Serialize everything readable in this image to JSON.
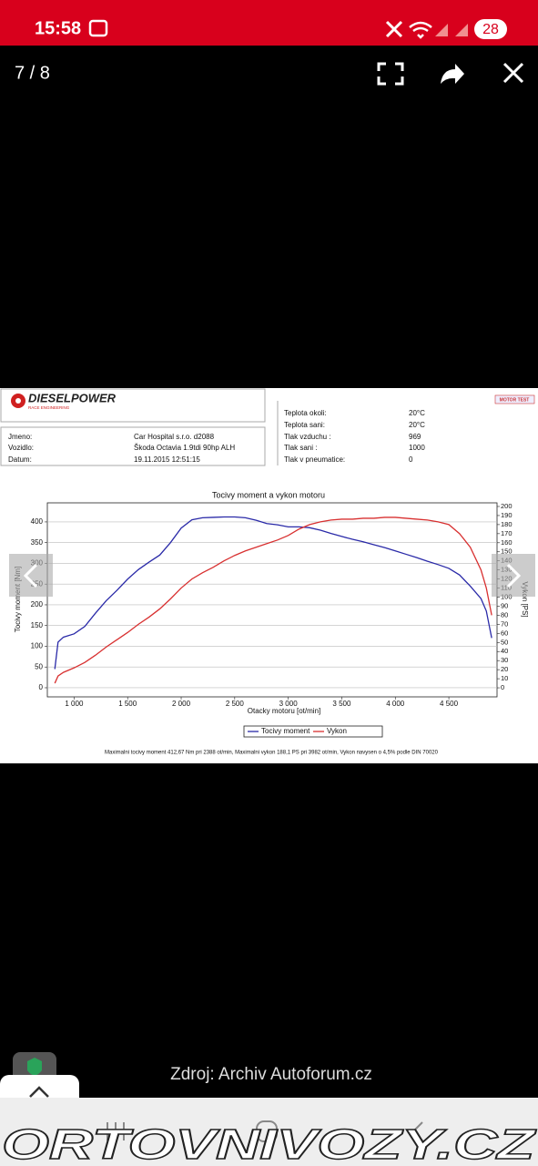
{
  "status_bar": {
    "time": "15:58",
    "battery": "28"
  },
  "viewer": {
    "counter": "7 / 8"
  },
  "sheet": {
    "logo": "DIESELPOWER",
    "logo_subtitle": "RACE ENGINEERING",
    "badge": "MOTOR TEST",
    "info": [
      {
        "label": "Jmeno:",
        "value": "Car Hospital s.r.o. d2088"
      },
      {
        "label": "Vozidlo:",
        "value": "Škoda Octavia 1.9tdi 90hp ALH"
      },
      {
        "label": "Datum:",
        "value": "19.11.2015 12:51:15"
      }
    ],
    "conditions": [
      {
        "label": "Teplota okoli:",
        "value": "20°C"
      },
      {
        "label": "Teplota sani:",
        "value": "20°C"
      },
      {
        "label": "Tlak vzduchu :",
        "value": 969
      },
      {
        "label": "Tlak sani :",
        "value": 1000
      },
      {
        "label": "Tlak v pneumatice:",
        "value": 0
      }
    ],
    "footnote": "Maximalni tocivy moment 412,67 Nm pri 2388 ot/min,  Maximalni vykon 188,1 PS pri 3982 ot/min,  Vykon navysen o 4,5% podle DIN 70020"
  },
  "chart_data": {
    "type": "line",
    "title": "Tocivy moment a vykon motoru",
    "x_label": "Otacky motoru [ot/min]",
    "y_label": "Tocivy moment [Nm]",
    "y2_label": "Vykon [PS]",
    "x": [
      820,
      850,
      900,
      1000,
      1100,
      1200,
      1300,
      1400,
      1500,
      1600,
      1700,
      1800,
      1900,
      2000,
      2100,
      2200,
      2300,
      2400,
      2500,
      2600,
      2700,
      2800,
      2900,
      3000,
      3100,
      3200,
      3300,
      3400,
      3500,
      3600,
      3700,
      3800,
      3900,
      4000,
      4100,
      4200,
      4300,
      4400,
      4500,
      4600,
      4700,
      4800,
      4850,
      4900
    ],
    "series": [
      {
        "name": "Tocivy moment",
        "color": "#2a2aa8",
        "axis": "y",
        "values": [
          45,
          110,
          122,
          130,
          148,
          180,
          210,
          235,
          262,
          285,
          303,
          320,
          350,
          385,
          405,
          410,
          411,
          412,
          412,
          410,
          404,
          396,
          393,
          388,
          388,
          386,
          380,
          372,
          365,
          358,
          352,
          345,
          338,
          330,
          322,
          314,
          305,
          297,
          288,
          272,
          245,
          215,
          185,
          120
        ]
      },
      {
        "name": "Vykon",
        "color": "#d83030",
        "axis": "y2",
        "values": [
          5,
          13,
          17,
          22,
          28,
          36,
          45,
          53,
          61,
          70,
          78,
          87,
          98,
          110,
          120,
          127,
          133,
          140,
          146,
          151,
          155,
          159,
          163,
          168,
          175,
          180,
          183,
          185,
          186,
          186,
          187,
          187,
          188,
          188,
          187,
          186,
          185,
          183,
          180,
          170,
          155,
          130,
          110,
          80
        ]
      }
    ],
    "xlim": [
      750,
      4950
    ],
    "xticks": [
      {
        "value": 1000,
        "label": "1 000"
      },
      {
        "value": 1500,
        "label": "1 500"
      },
      {
        "value": 2000,
        "label": "2 000"
      },
      {
        "value": 2500,
        "label": "2 500"
      },
      {
        "value": 3000,
        "label": "3 000"
      },
      {
        "value": 3500,
        "label": "3 500"
      },
      {
        "value": 4000,
        "label": "4 000"
      },
      {
        "value": 4500,
        "label": "4 500"
      }
    ],
    "ylim": [
      -22,
      446
    ],
    "yticks": [
      0,
      50,
      100,
      150,
      200,
      250,
      300,
      350,
      400
    ],
    "y2lim": [
      -10,
      204
    ],
    "y2ticks": [
      0,
      10,
      20,
      30,
      40,
      50,
      60,
      70,
      80,
      90,
      100,
      110,
      120,
      130,
      140,
      150,
      160,
      170,
      180,
      190,
      200
    ],
    "grid": true
  },
  "caption": "Zdroj: Archiv Autoforum.cz",
  "watermark": "ORTOVNIVOZY.CZ"
}
